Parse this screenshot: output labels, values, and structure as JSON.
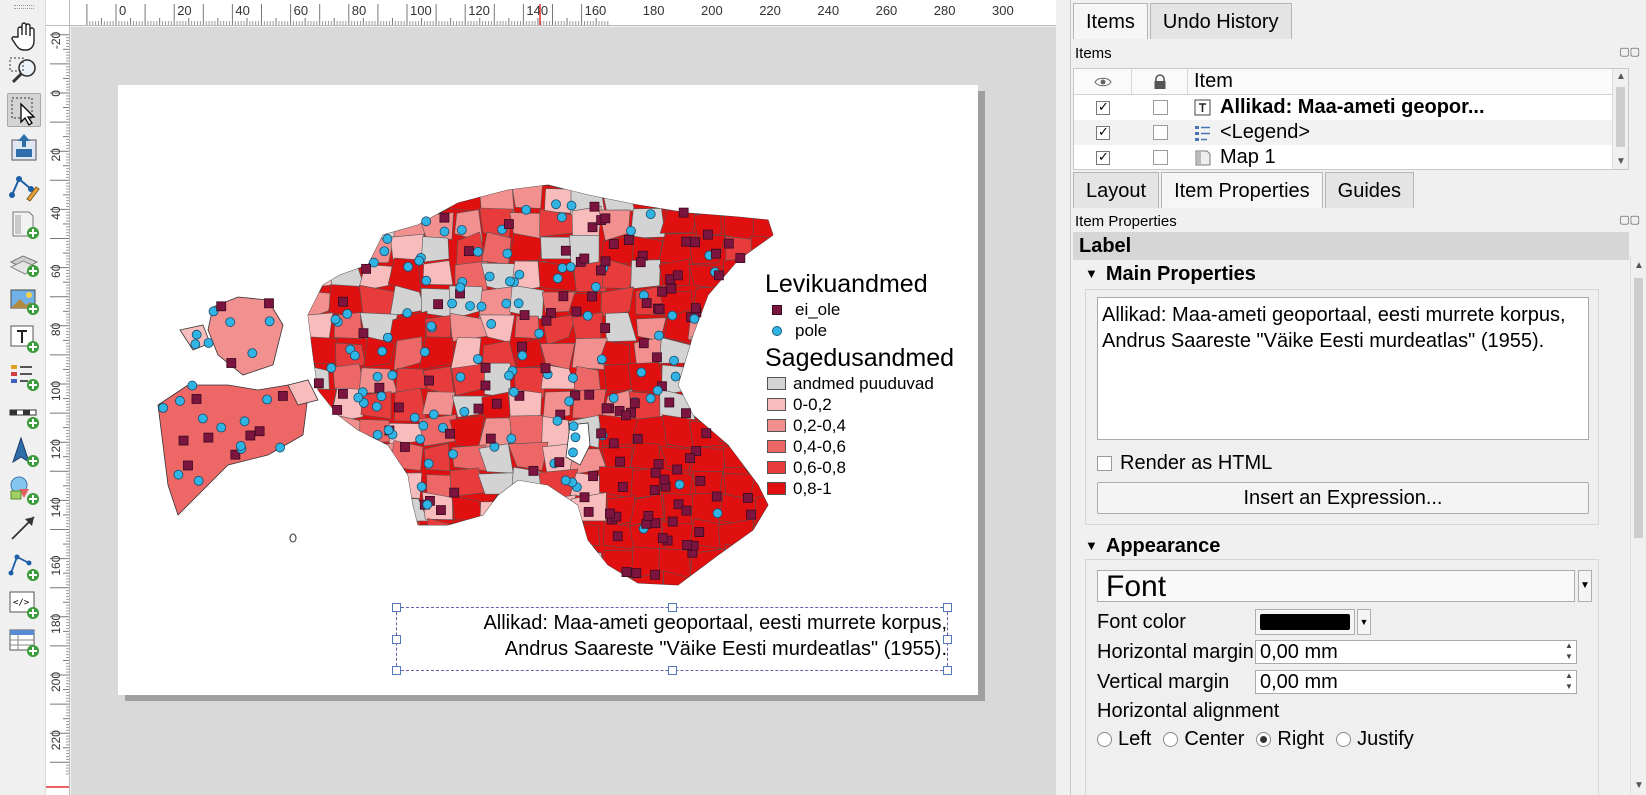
{
  "toolbar": {
    "tools": [
      {
        "name": "pan-layout-tool-icon"
      },
      {
        "name": "zoom-tool-icon"
      },
      {
        "name": "select-move-item-tool-icon"
      },
      {
        "name": "move-item-content-tool-icon"
      },
      {
        "name": "edit-nodes-tool-icon"
      },
      {
        "name": "add-map-icon"
      },
      {
        "name": "add-3d-map-icon"
      },
      {
        "name": "add-picture-icon"
      },
      {
        "name": "add-label-icon"
      },
      {
        "name": "add-legend-icon"
      },
      {
        "name": "add-scale-bar-icon"
      },
      {
        "name": "add-north-arrow-icon"
      },
      {
        "name": "add-shape-icon"
      },
      {
        "name": "add-arrow-icon"
      },
      {
        "name": "add-node-item-icon"
      },
      {
        "name": "add-html-icon"
      },
      {
        "name": "add-attribute-table-icon"
      }
    ]
  },
  "rulers": {
    "horizontal": [
      "0",
      "20",
      "40",
      "60",
      "80",
      "100",
      "120",
      "140",
      "160",
      "180",
      "200",
      "220",
      "240",
      "260",
      "280",
      "300"
    ],
    "vertical": [
      "-20",
      "0",
      "20",
      "40",
      "60",
      "80",
      "100",
      "120",
      "140",
      "160",
      "180",
      "200",
      "220"
    ]
  },
  "layout": {
    "legend": {
      "title1": "Levikuandmed",
      "symbols": [
        {
          "label": "ei_ole",
          "shape": "square",
          "color": "#7b1540"
        },
        {
          "label": "pole",
          "shape": "circle",
          "color": "#2fb4e3"
        }
      ],
      "title2": "Sagedusandmed",
      "classes": [
        {
          "label": "andmed puuduvad",
          "color": "#d3d3d3"
        },
        {
          "label": "0-0,2",
          "color": "#f8bcbc"
        },
        {
          "label": "0,2-0,4",
          "color": "#f29090"
        },
        {
          "label": "0,4-0,6",
          "color": "#ee6767"
        },
        {
          "label": "0,6-0,8",
          "color": "#e83b3b"
        },
        {
          "label": "0,8-1",
          "color": "#e01010"
        }
      ]
    },
    "label": {
      "line1": "Allikad: Maa-ameti geoportaal, eesti murrete korpus,",
      "line2": "Andrus Saareste \"Väike Eesti murdeatlas\" (1955)."
    }
  },
  "dock": {
    "tabs_top": [
      "Items",
      "Undo History"
    ],
    "items_panel_title": "Items",
    "items_header": {
      "col_item": "Item"
    },
    "items": [
      {
        "label": "Allikad: Maa-ameti geopor...",
        "visible": true,
        "locked": false,
        "icon": "label-item-icon",
        "bold": true
      },
      {
        "label": "<Legend>",
        "visible": true,
        "locked": false,
        "icon": "legend-item-icon",
        "bold": false
      },
      {
        "label": "Map 1",
        "visible": true,
        "locked": false,
        "icon": "map-item-icon",
        "bold": false
      }
    ],
    "tabs_bottom": [
      "Layout",
      "Item Properties",
      "Guides"
    ],
    "props_panel_title": "Item Properties",
    "section_label": "Label",
    "main_properties": {
      "title": "Main Properties",
      "text_line1": "Allikad: Maa-ameti geoportaal, eesti murrete korpus,",
      "text_line2": "Andrus Saareste \"Väike Eesti murdeatlas\" (1955).",
      "render_html_label": "Render as HTML",
      "render_html_checked": false,
      "insert_expression": "Insert an Expression..."
    },
    "appearance": {
      "title": "Appearance",
      "font_button": "Font",
      "font_color_label": "Font color",
      "font_color": "#000000",
      "h_margin_label": "Horizontal margin",
      "h_margin_value": "0,00 mm",
      "v_margin_label": "Vertical margin",
      "v_margin_value": "0,00 mm",
      "h_align_label": "Horizontal alignment",
      "h_align_options": [
        "Left",
        "Center",
        "Right",
        "Justify"
      ],
      "h_align_selected": "Right"
    }
  }
}
